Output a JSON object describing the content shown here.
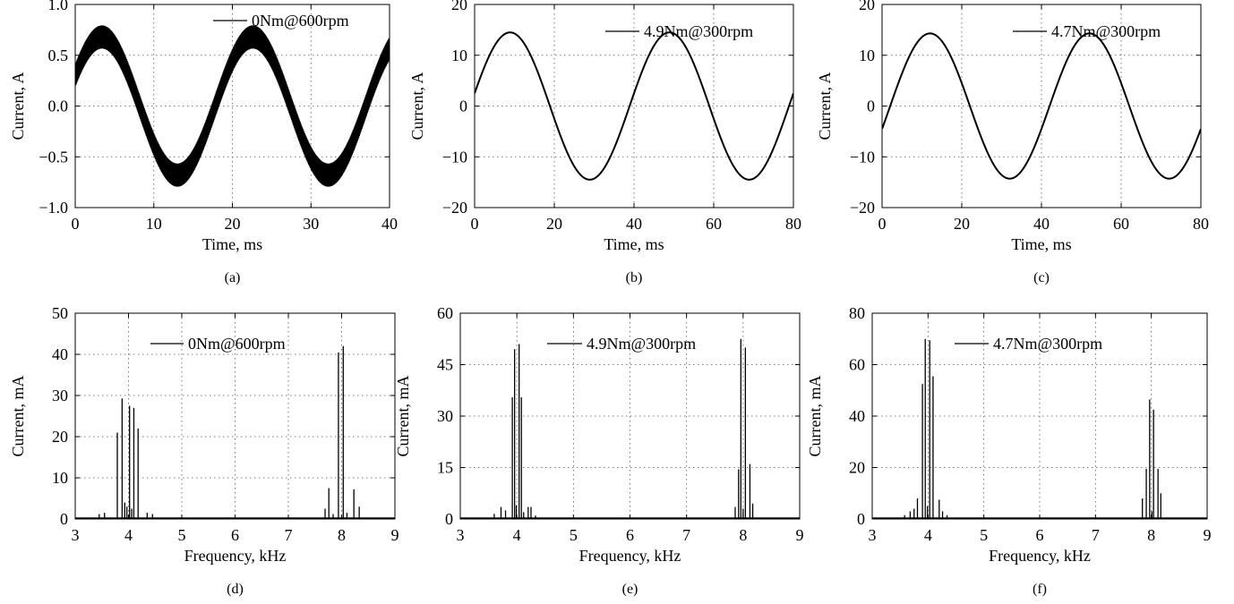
{
  "chart_data": [
    {
      "type": "line",
      "caption": "(a)",
      "xlabel": "Time, ms",
      "ylabel": "Current, A",
      "xlim": [
        0,
        40
      ],
      "ylim": [
        -1.0,
        1.0
      ],
      "xticks": [
        "0",
        "10",
        "20",
        "30",
        "40"
      ],
      "yticks": [
        "−1.0",
        "−0.5",
        "0.0",
        "0.5",
        "1.0"
      ],
      "grid": true,
      "legend_position": "top-right",
      "series": [
        {
          "name": "0Nm@600rpm",
          "signal": "sinusoid",
          "period_ms": 19.2,
          "amplitude": 0.68,
          "value_at_zero": 0.3,
          "ripple_amplitude": 0.12,
          "ripple_frequency_khz": 4
        }
      ]
    },
    {
      "type": "line",
      "caption": "(b)",
      "xlabel": "Time, ms",
      "ylabel": "Current, A",
      "xlim": [
        0,
        80
      ],
      "ylim": [
        -20,
        20
      ],
      "xticks": [
        "0",
        "20",
        "40",
        "60",
        "80"
      ],
      "yticks": [
        "−20",
        "−10",
        "0",
        "10",
        "20"
      ],
      "grid": true,
      "legend_position": "top-right",
      "series": [
        {
          "name": "4.9Nm@300rpm",
          "signal": "sinusoid",
          "period_ms": 40,
          "amplitude": 14.5,
          "value_at_zero": 2.5
        }
      ]
    },
    {
      "type": "line",
      "caption": "(c)",
      "xlabel": "Time, ms",
      "ylabel": "Current, A",
      "xlim": [
        0,
        80
      ],
      "ylim": [
        -20,
        20
      ],
      "xticks": [
        "0",
        "20",
        "40",
        "60",
        "80"
      ],
      "yticks": [
        "−20",
        "−10",
        "0",
        "10",
        "20"
      ],
      "grid": true,
      "legend_position": "top-right",
      "series": [
        {
          "name": "4.7Nm@300rpm",
          "signal": "sinusoid",
          "period_ms": 40,
          "amplitude": 14.3,
          "value_at_zero": -4.5
        }
      ]
    },
    {
      "type": "bar",
      "caption": "(d)",
      "xlabel": "Frequency, kHz",
      "ylabel": "Current, mA",
      "xlim": [
        3,
        9
      ],
      "ylim": [
        0,
        50
      ],
      "xticks": [
        "3",
        "4",
        "5",
        "6",
        "7",
        "8",
        "9"
      ],
      "yticks": [
        "0",
        "10",
        "20",
        "30",
        "40",
        "50"
      ],
      "grid": true,
      "legend_position": "top-center",
      "series": [
        {
          "name": "0Nm@600rpm",
          "spectral_lines": [
            {
              "f": 3.45,
              "v": 1.2
            },
            {
              "f": 3.55,
              "v": 1.5
            },
            {
              "f": 3.79,
              "v": 21
            },
            {
              "f": 3.88,
              "v": 29.3
            },
            {
              "f": 3.93,
              "v": 4
            },
            {
              "f": 3.97,
              "v": 3
            },
            {
              "f": 4.02,
              "v": 27.5
            },
            {
              "f": 4.1,
              "v": 27
            },
            {
              "f": 4.18,
              "v": 22
            },
            {
              "f": 4.06,
              "v": 2.5
            },
            {
              "f": 4.35,
              "v": 1.5
            },
            {
              "f": 4.45,
              "v": 1.2
            },
            {
              "f": 7.69,
              "v": 2.5
            },
            {
              "f": 7.76,
              "v": 7.5
            },
            {
              "f": 7.84,
              "v": 1.2
            },
            {
              "f": 7.94,
              "v": 40.5
            },
            {
              "f": 8.03,
              "v": 42
            },
            {
              "f": 8.1,
              "v": 1.5
            },
            {
              "f": 8.23,
              "v": 7.2
            },
            {
              "f": 8.33,
              "v": 3
            }
          ]
        }
      ]
    },
    {
      "type": "bar",
      "caption": "(e)",
      "xlabel": "Frequency, kHz",
      "ylabel": "Current, mA",
      "xlim": [
        3,
        9
      ],
      "ylim": [
        0,
        60
      ],
      "xticks": [
        "3",
        "4",
        "5",
        "6",
        "7",
        "8",
        "9"
      ],
      "yticks": [
        "0",
        "15",
        "30",
        "45",
        "60"
      ],
      "grid": true,
      "legend_position": "top-center",
      "series": [
        {
          "name": "4.9Nm@300rpm",
          "spectral_lines": [
            {
              "f": 3.6,
              "v": 1.5
            },
            {
              "f": 3.72,
              "v": 3.5
            },
            {
              "f": 3.8,
              "v": 2.5
            },
            {
              "f": 3.92,
              "v": 35.5
            },
            {
              "f": 3.96,
              "v": 49.5
            },
            {
              "f": 3.99,
              "v": 4
            },
            {
              "f": 4.04,
              "v": 51
            },
            {
              "f": 4.08,
              "v": 35.5
            },
            {
              "f": 4.12,
              "v": 2
            },
            {
              "f": 4.2,
              "v": 3.5
            },
            {
              "f": 4.25,
              "v": 3.5
            },
            {
              "f": 4.33,
              "v": 1
            },
            {
              "f": 7.86,
              "v": 3.5
            },
            {
              "f": 7.92,
              "v": 14.5
            },
            {
              "f": 7.96,
              "v": 52.5
            },
            {
              "f": 8.0,
              "v": 3
            },
            {
              "f": 8.04,
              "v": 50
            },
            {
              "f": 8.12,
              "v": 16
            },
            {
              "f": 8.17,
              "v": 4.5
            }
          ]
        }
      ]
    },
    {
      "type": "bar",
      "caption": "(f)",
      "xlabel": "Frequency, kHz",
      "ylabel": "Current, mA",
      "xlim": [
        3,
        9
      ],
      "ylim": [
        0,
        80
      ],
      "xticks": [
        "3",
        "4",
        "5",
        "6",
        "7",
        "8",
        "9"
      ],
      "yticks": [
        "0",
        "20",
        "40",
        "60",
        "80"
      ],
      "grid": true,
      "legend_position": "top-center",
      "series": [
        {
          "name": "4.7Nm@300rpm",
          "spectral_lines": [
            {
              "f": 3.58,
              "v": 1.5
            },
            {
              "f": 3.68,
              "v": 3
            },
            {
              "f": 3.75,
              "v": 4
            },
            {
              "f": 3.81,
              "v": 8
            },
            {
              "f": 3.9,
              "v": 52.5
            },
            {
              "f": 3.95,
              "v": 70
            },
            {
              "f": 3.99,
              "v": 5
            },
            {
              "f": 4.03,
              "v": 69.5
            },
            {
              "f": 4.09,
              "v": 55.5
            },
            {
              "f": 4.2,
              "v": 7.5
            },
            {
              "f": 4.26,
              "v": 3
            },
            {
              "f": 4.34,
              "v": 1.5
            },
            {
              "f": 7.84,
              "v": 8
            },
            {
              "f": 7.91,
              "v": 19.5
            },
            {
              "f": 7.97,
              "v": 46.5
            },
            {
              "f": 8.01,
              "v": 3
            },
            {
              "f": 8.04,
              "v": 42.5
            },
            {
              "f": 8.12,
              "v": 19.5
            },
            {
              "f": 8.17,
              "v": 10
            }
          ]
        }
      ]
    }
  ]
}
